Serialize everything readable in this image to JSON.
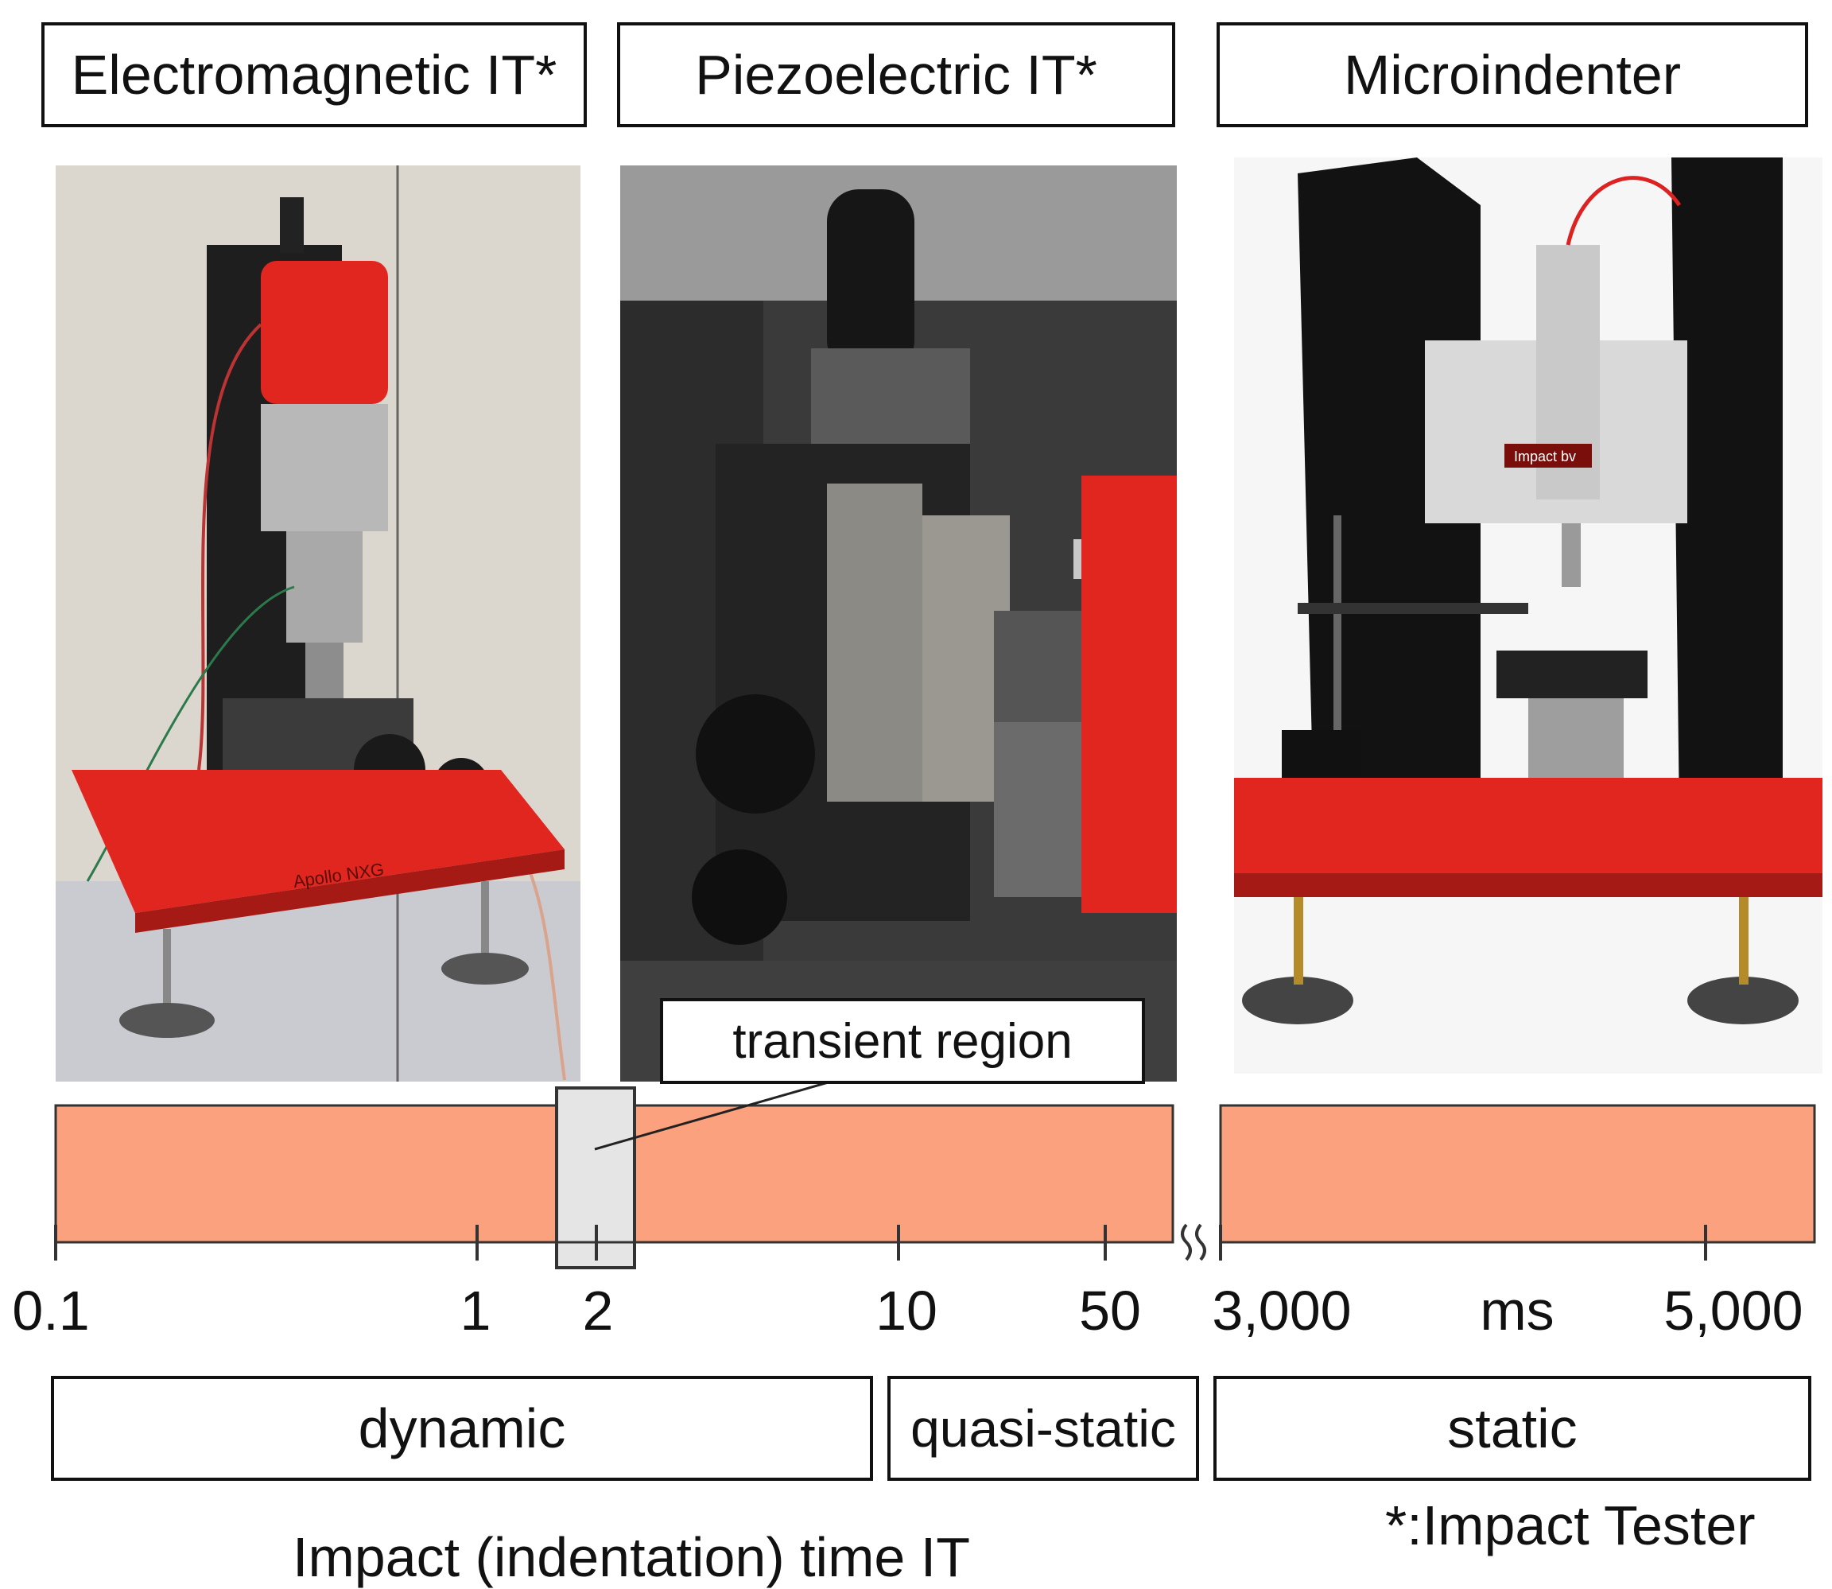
{
  "headers": {
    "electromagnetic": "Electromagnetic IT*",
    "piezoelectric": "Piezoelectric IT*",
    "microindenter": "Microindenter"
  },
  "photos": {
    "electromagnetic": {
      "alt": "electromagnetic-impact-tester-photo",
      "base_label": "Apollo NXG"
    },
    "piezoelectric": {
      "alt": "piezoelectric-impact-tester-photo"
    },
    "microindenter": {
      "alt": "microindenter-photo",
      "plate_label": "Impact bv"
    }
  },
  "callout": {
    "text": "transient region"
  },
  "axis": {
    "ticks": [
      "0.1",
      "1",
      "2",
      "10",
      "50",
      "3,000",
      "5,000"
    ],
    "unit": "ms"
  },
  "regimes": {
    "dynamic": "dynamic",
    "quasi_static": "quasi-static",
    "static": "static"
  },
  "footnote": "*:Impact Tester",
  "axis_title": "Impact (indentation) time IT",
  "colors": {
    "timeline_fill": "#fba17e",
    "transient_fill": "#e5e5e5",
    "red": "#e0261f",
    "dark": "#2b2b2b"
  }
}
